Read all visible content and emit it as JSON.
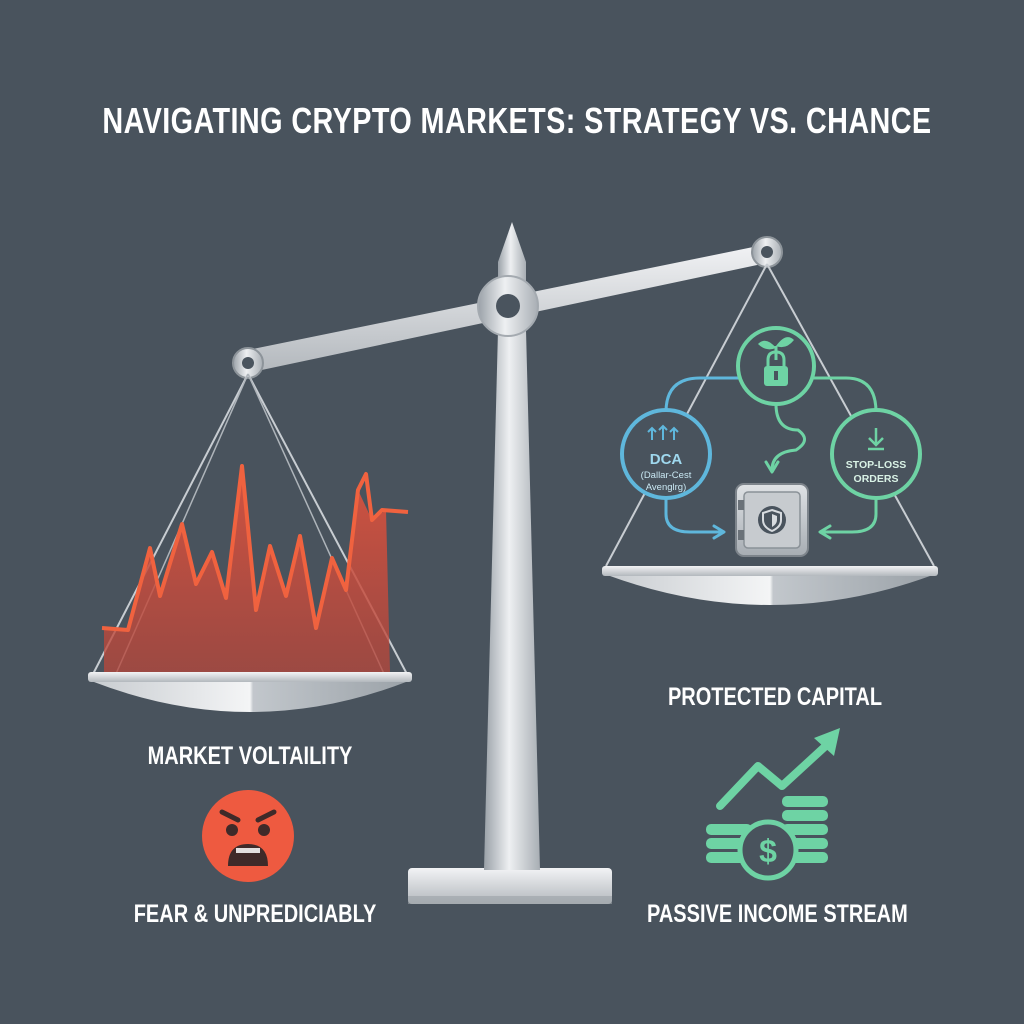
{
  "title": "NAVIGATING CRYPTO MARKETS: STRATEGY VS. CHANCE",
  "left": {
    "top_label": "MARKET VOLTAILITY",
    "bottom_label": "FEAR & UNPREDICIABLY",
    "emotion_icon": "frightened-face-icon"
  },
  "right": {
    "top_label": "PROTECTED CAPITAL",
    "bottom_label": "PASSIVE INCOME STREAM",
    "income_icon": "coins-growth-icon"
  },
  "strategy": {
    "dca_title": "DCA",
    "dca_line1": "(Dallar-Cest",
    "dca_line2": "Avenglrg)",
    "stoploss_line1": "STOP-LOSS",
    "stoploss_line2": "ORDERS",
    "top_icon": "sprout-lock-icon",
    "center_icon": "safe-shield-icon"
  },
  "colors": {
    "background": "#49535d",
    "volatility": "#e0533f",
    "dca": "#5fb7dc",
    "growth": "#6ed3a4"
  }
}
